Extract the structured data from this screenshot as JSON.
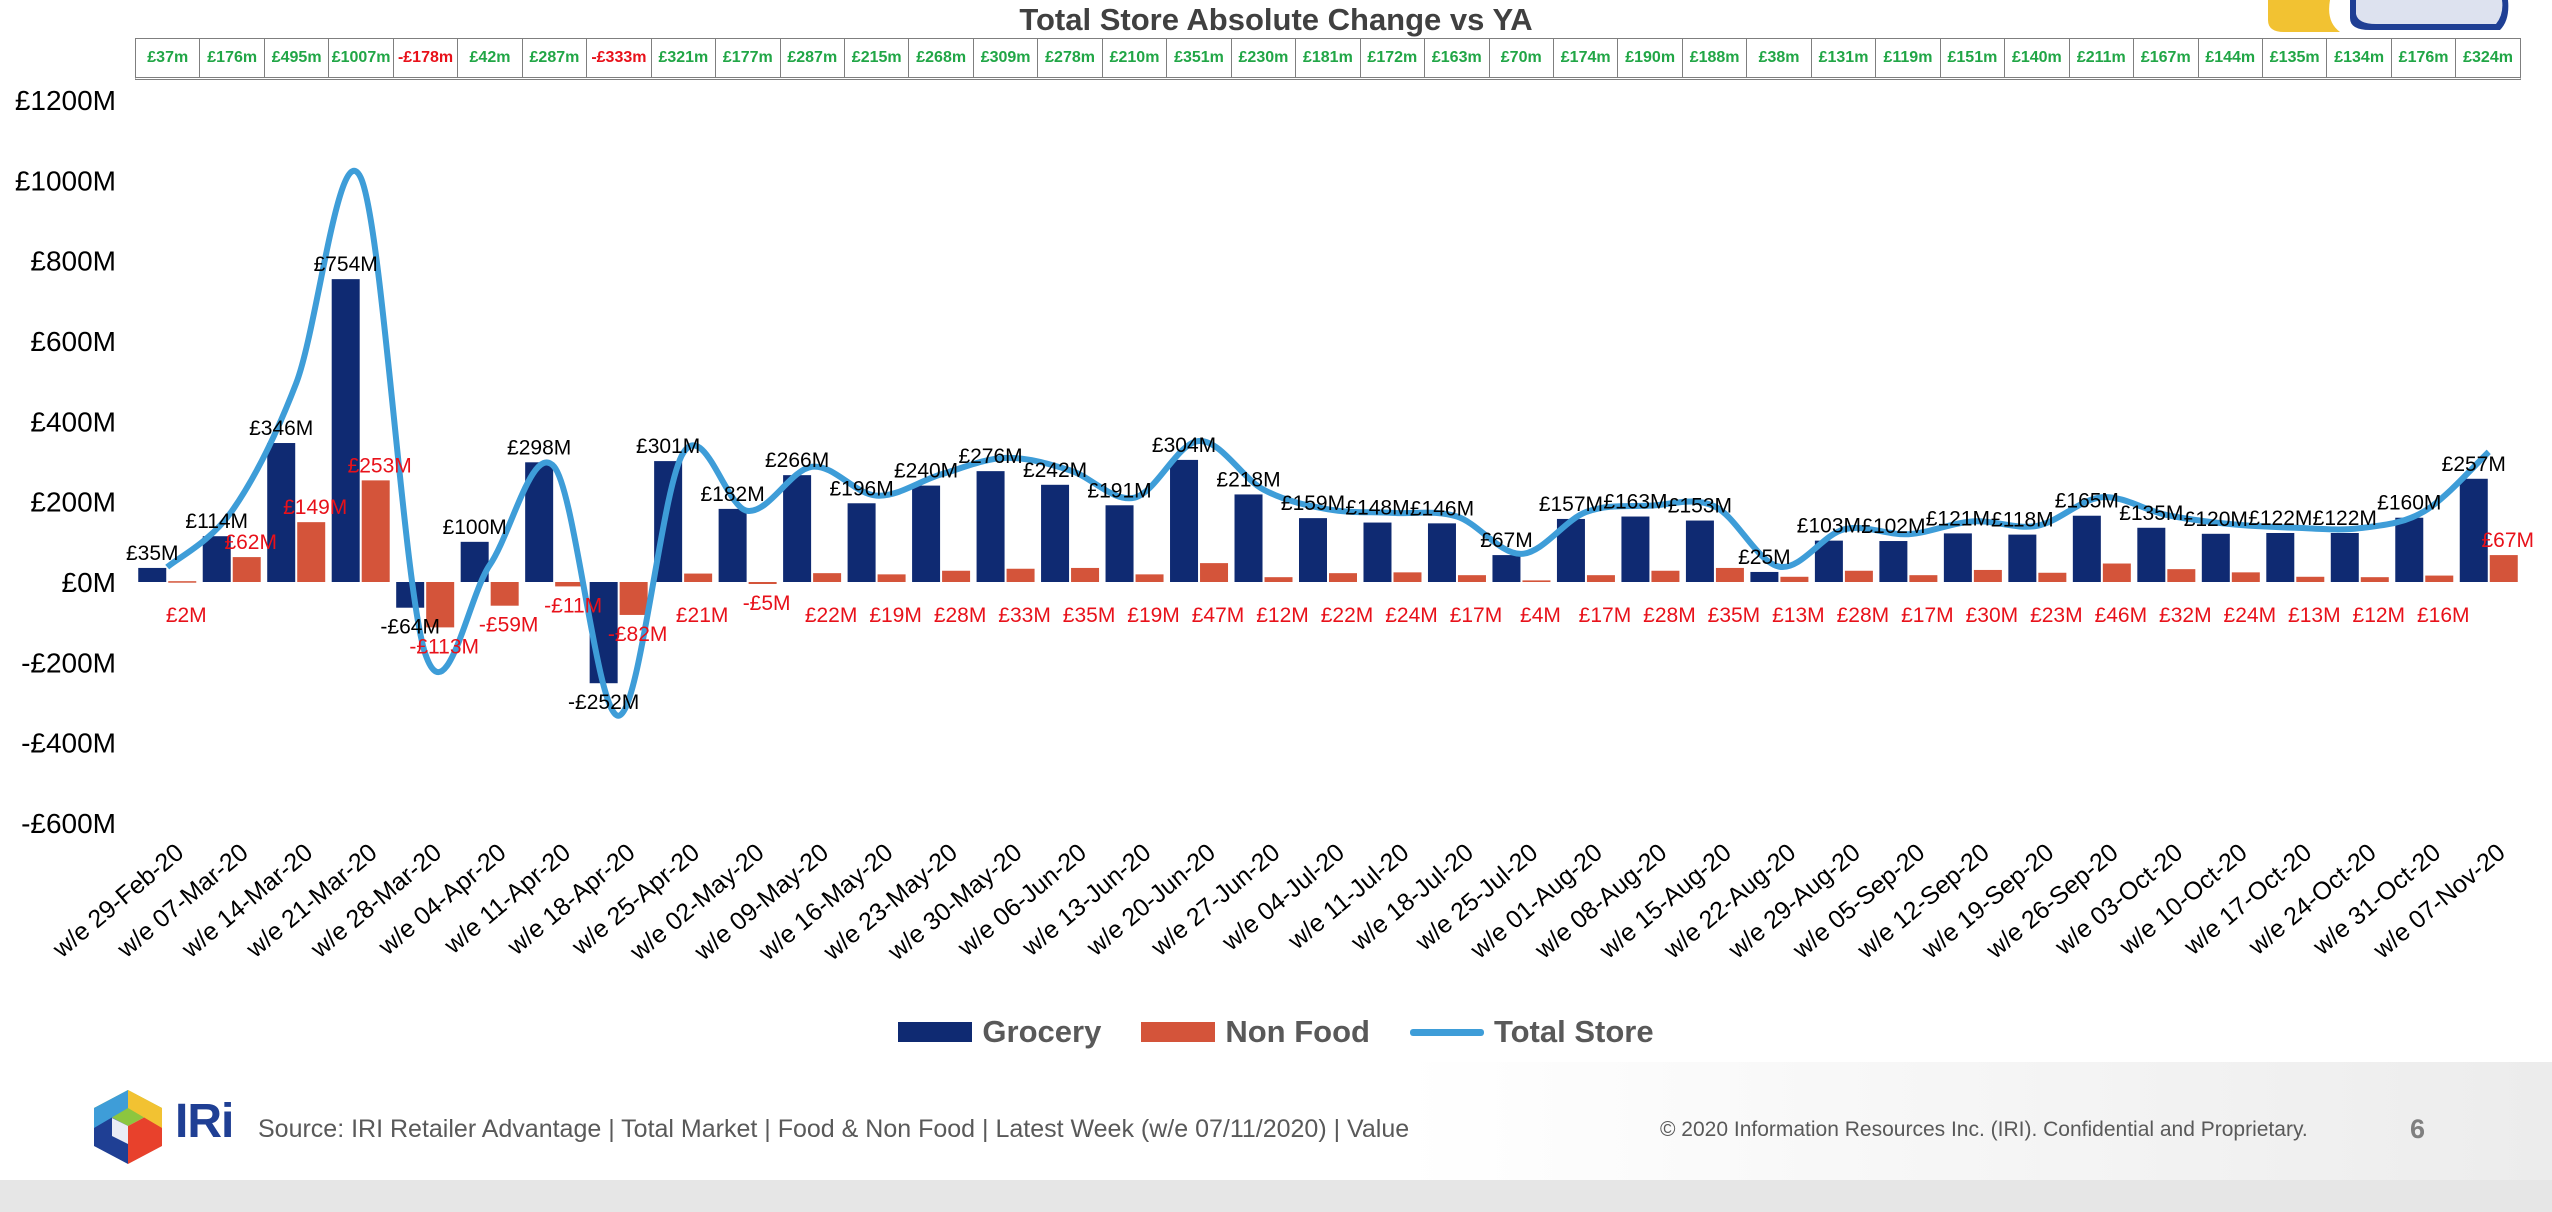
{
  "title": "Total Store Absolute Change vs YA",
  "top_totals": [
    "£37m",
    "£176m",
    "£495m",
    "£1007m",
    "-£178m",
    "£42m",
    "£287m",
    "-£333m",
    "£321m",
    "£177m",
    "£287m",
    "£215m",
    "£268m",
    "£309m",
    "£278m",
    "£210m",
    "£351m",
    "£230m",
    "£181m",
    "£172m",
    "£163m",
    "£70m",
    "£174m",
    "£190m",
    "£188m",
    "£38m",
    "£131m",
    "£119m",
    "£151m",
    "£140m",
    "£211m",
    "£167m",
    "£144m",
    "£135m",
    "£134m",
    "£176m",
    "£324m"
  ],
  "legend": {
    "grocery": "Grocery",
    "nonfood": "Non Food",
    "total": "Total Store"
  },
  "colors": {
    "grocery": "#0f2a72",
    "nonfood": "#d4543a",
    "total": "#3e9dd8",
    "positive_total": "#21a646",
    "negative_total": "#e8111a"
  },
  "footer": {
    "brand": "IRi",
    "source": "Source: IRI Retailer Advantage | Total Market | Food & Non Food | Latest Week (w/e 07/11/2020) | Value",
    "copyright": "© 2020 Information Resources Inc. (IRI). Confidential and Proprietary.",
    "page": "6"
  },
  "chart_data": {
    "type": "bar",
    "title": "Total Store Absolute Change vs YA",
    "xlabel": "",
    "ylabel": "",
    "ylim": [
      -600,
      1200
    ],
    "yticks": [
      1200,
      1000,
      800,
      600,
      400,
      200,
      0,
      -200,
      -400,
      -600
    ],
    "ytick_labels": [
      "£1200M",
      "£1000M",
      "£800M",
      "£600M",
      "£400M",
      "£200M",
      "£0M",
      "-£200M",
      "-£400M",
      "-£600M"
    ],
    "grid": false,
    "legend_position": "bottom",
    "categories": [
      "w/e 29-Feb-20",
      "w/e 07-Mar-20",
      "w/e 14-Mar-20",
      "w/e 21-Mar-20",
      "w/e 28-Mar-20",
      "w/e 04-Apr-20",
      "w/e 11-Apr-20",
      "w/e 18-Apr-20",
      "w/e 25-Apr-20",
      "w/e 02-May-20",
      "w/e 09-May-20",
      "w/e 16-May-20",
      "w/e 23-May-20",
      "w/e 30-May-20",
      "w/e 06-Jun-20",
      "w/e 13-Jun-20",
      "w/e 20-Jun-20",
      "w/e 27-Jun-20",
      "w/e 04-Jul-20",
      "w/e 11-Jul-20",
      "w/e 18-Jul-20",
      "w/e 25-Jul-20",
      "w/e 01-Aug-20",
      "w/e 08-Aug-20",
      "w/e 15-Aug-20",
      "w/e 22-Aug-20",
      "w/e 29-Aug-20",
      "w/e 05-Sep-20",
      "w/e 12-Sep-20",
      "w/e 19-Sep-20",
      "w/e 26-Sep-20",
      "w/e 03-Oct-20",
      "w/e 10-Oct-20",
      "w/e 17-Oct-20",
      "w/e 24-Oct-20",
      "w/e 31-Oct-20",
      "w/e 07-Nov-20"
    ],
    "series": [
      {
        "name": "Grocery",
        "type": "bar",
        "values": [
          35,
          114,
          346,
          754,
          -64,
          100,
          298,
          -252,
          301,
          182,
          266,
          196,
          240,
          276,
          242,
          191,
          304,
          218,
          159,
          148,
          146,
          67,
          157,
          163,
          153,
          25,
          103,
          102,
          121,
          118,
          165,
          135,
          120,
          122,
          122,
          160,
          257
        ],
        "labels": [
          "£35M",
          "£114M",
          "£346M",
          "£754M",
          "-£64M",
          "£100M",
          "£298M",
          "-£252M",
          "£301M",
          "£182M",
          "£266M",
          "£196M",
          "£240M",
          "£276M",
          "£242M",
          "£191M",
          "£304M",
          "£218M",
          "£159M",
          "£148M",
          "£146M",
          "£67M",
          "£157M",
          "£163M",
          "£153M",
          "£25M",
          "£103M",
          "£102M",
          "£121M",
          "£118M",
          "£165M",
          "£135M",
          "£120M",
          "£122M",
          "£122M",
          "£160M",
          "£257M"
        ]
      },
      {
        "name": "Non Food",
        "type": "bar",
        "values": [
          2,
          62,
          149,
          253,
          -113,
          -59,
          -11,
          -82,
          21,
          -5,
          22,
          19,
          28,
          33,
          35,
          19,
          47,
          12,
          22,
          24,
          17,
          4,
          17,
          28,
          35,
          13,
          28,
          17,
          30,
          23,
          46,
          32,
          24,
          13,
          12,
          16,
          67
        ],
        "labels": [
          "£2M",
          "£62M",
          "£149M",
          "£253M",
          "-£113M",
          "-£59M",
          "-£11M",
          "-£82M",
          "£21M",
          "-£5M",
          "£22M",
          "£19M",
          "£28M",
          "£33M",
          "£35M",
          "£19M",
          "£47M",
          "£12M",
          "£22M",
          "£24M",
          "£17M",
          "£4M",
          "£17M",
          "£28M",
          "£35M",
          "£13M",
          "£28M",
          "£17M",
          "£30M",
          "£23M",
          "£46M",
          "£32M",
          "£24M",
          "£13M",
          "£12M",
          "£16M",
          "£67M"
        ]
      },
      {
        "name": "Total Store",
        "type": "line",
        "values": [
          37,
          176,
          495,
          1007,
          -178,
          42,
          287,
          -333,
          321,
          177,
          287,
          215,
          268,
          309,
          278,
          210,
          351,
          230,
          181,
          172,
          163,
          70,
          174,
          190,
          188,
          38,
          131,
          119,
          151,
          140,
          211,
          167,
          144,
          135,
          134,
          176,
          324
        ]
      }
    ]
  }
}
